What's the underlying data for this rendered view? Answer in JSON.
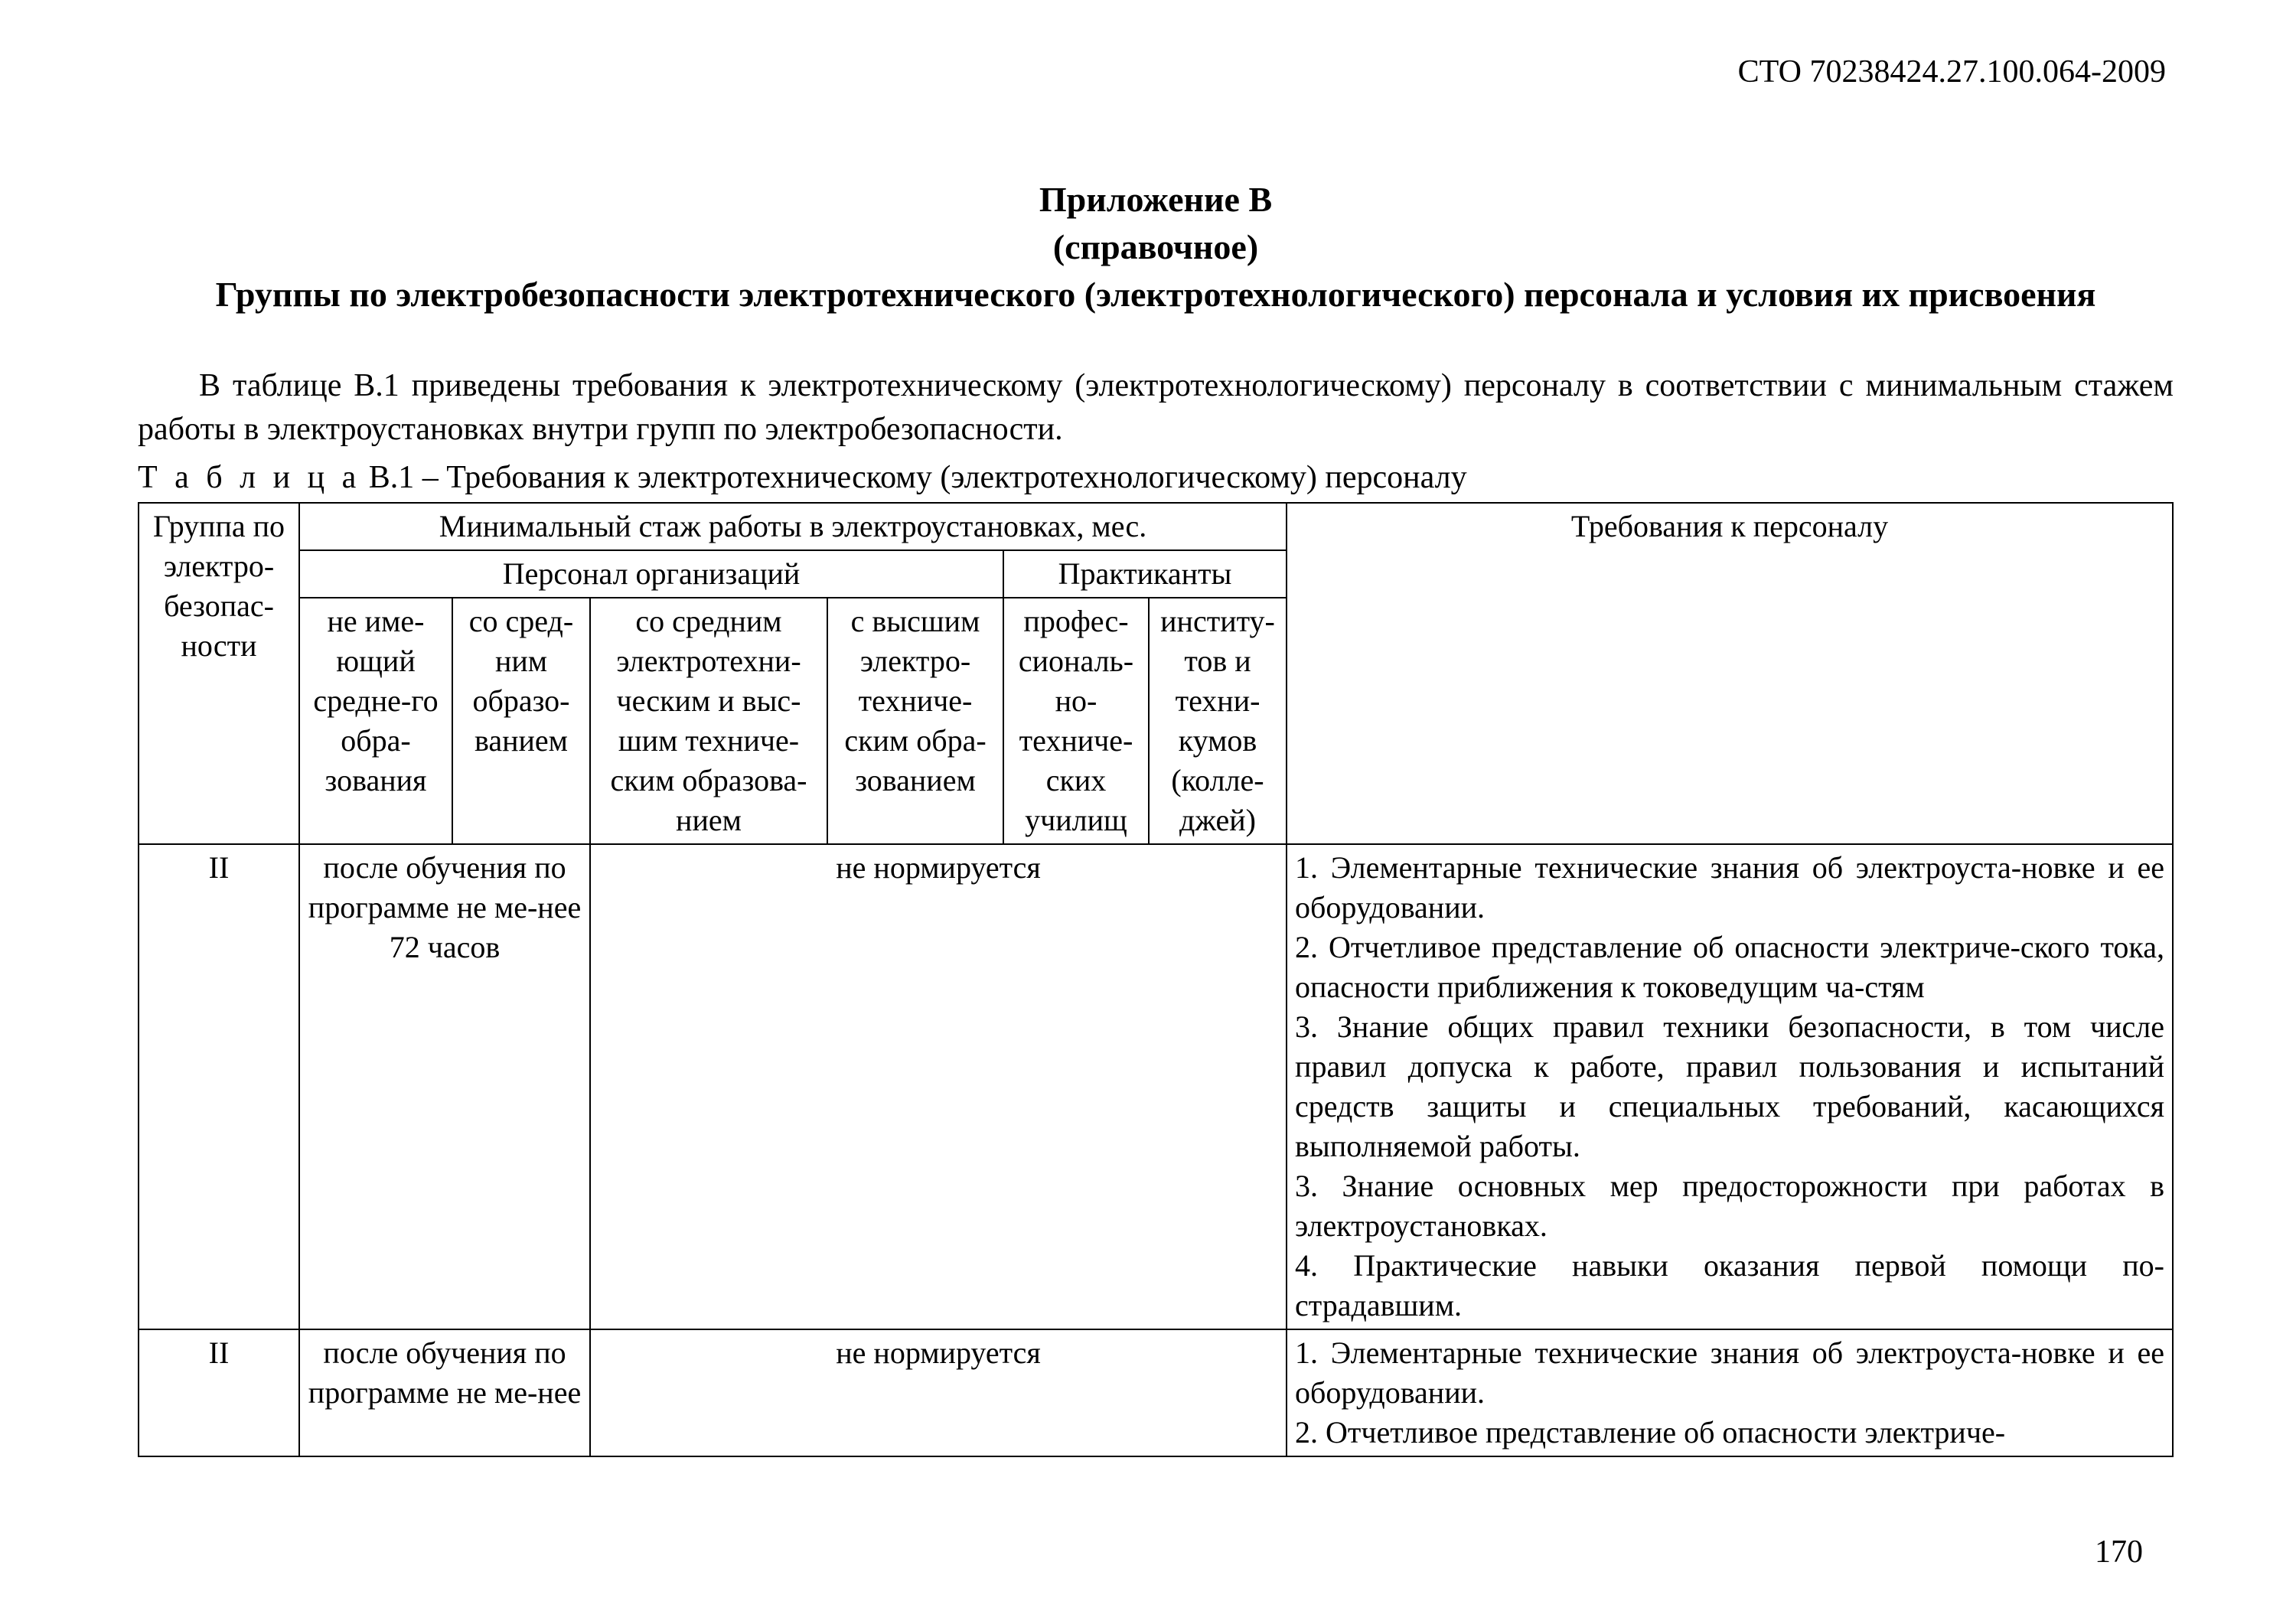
{
  "doc_id": "СТО 70238424.27.100.064-2009",
  "heading": {
    "line1": "Приложение В",
    "line2": "(справочное)",
    "line3": "Группы по электробезопасности электротехнического (электротехнологического) персонала и условия их присвоения"
  },
  "intro": {
    "p1": "В таблице В.1 приведены требования к электротехническому (электротехнологическому) персоналу в соответствии с минимальным стажем работы в электроустановках внутри групп по электробезопасности.",
    "caption_prefix": "Т а б л и ц а",
    "caption_rest": " В.1 – Требования к электротехническому (электротехнологическому) персоналу"
  },
  "table": {
    "col_widths": [
      "210px",
      "200px",
      "180px",
      "310px",
      "230px",
      "190px",
      "180px",
      "auto"
    ],
    "head": {
      "c1": "Группа по электро-безопас-ности",
      "span_stage": "Минимальный стаж работы в электроустановках, мес.",
      "span_req": "Требования к персоналу",
      "span_org": "Персонал организаций",
      "span_prak": "Практиканты",
      "h_noedu": "не име-ющий средне-го обра-зования",
      "h_sred": "со сред-ним образо-ванием",
      "h_sred_el": "со средним электротехни-ческим и выс-шим техниче-ским образова-нием",
      "h_high": "с высшим электро-техниче-ским обра-зованием",
      "h_ptu": "профес-сиональ-но-техниче-ских училищ",
      "h_inst": "институ-тов и техни-кумов (колле-джей)"
    },
    "rows": [
      {
        "group": "II",
        "col_ab": "после обучения по программе не ме-нее\n72 часов",
        "col_cdef": "не нормируется",
        "req": "1. Элементарные технические знания об электроуста-новке и ее оборудовании.\n2. Отчетливое представление об опасности электриче-ского тока, опасности приближения к токоведущим ча-стям\n3. Знание общих правил техники безопасности, в том числе правил допуска к работе, правил пользования и испытаний средств защиты и специальных требований, касающихся выполняемой работы.\n3. Знание основных мер предосторожности при работах в электроустановках.\n4. Практические навыки оказания первой помощи по-страдавшим."
      },
      {
        "group": "II",
        "col_ab": "после обучения по программе не ме-нее",
        "col_cdef": "не нормируется",
        "req": "1. Элементарные технические знания об электроуста-новке и ее оборудовании.\n2. Отчетливое представление об опасности электриче-"
      }
    ]
  },
  "page_number": "170"
}
